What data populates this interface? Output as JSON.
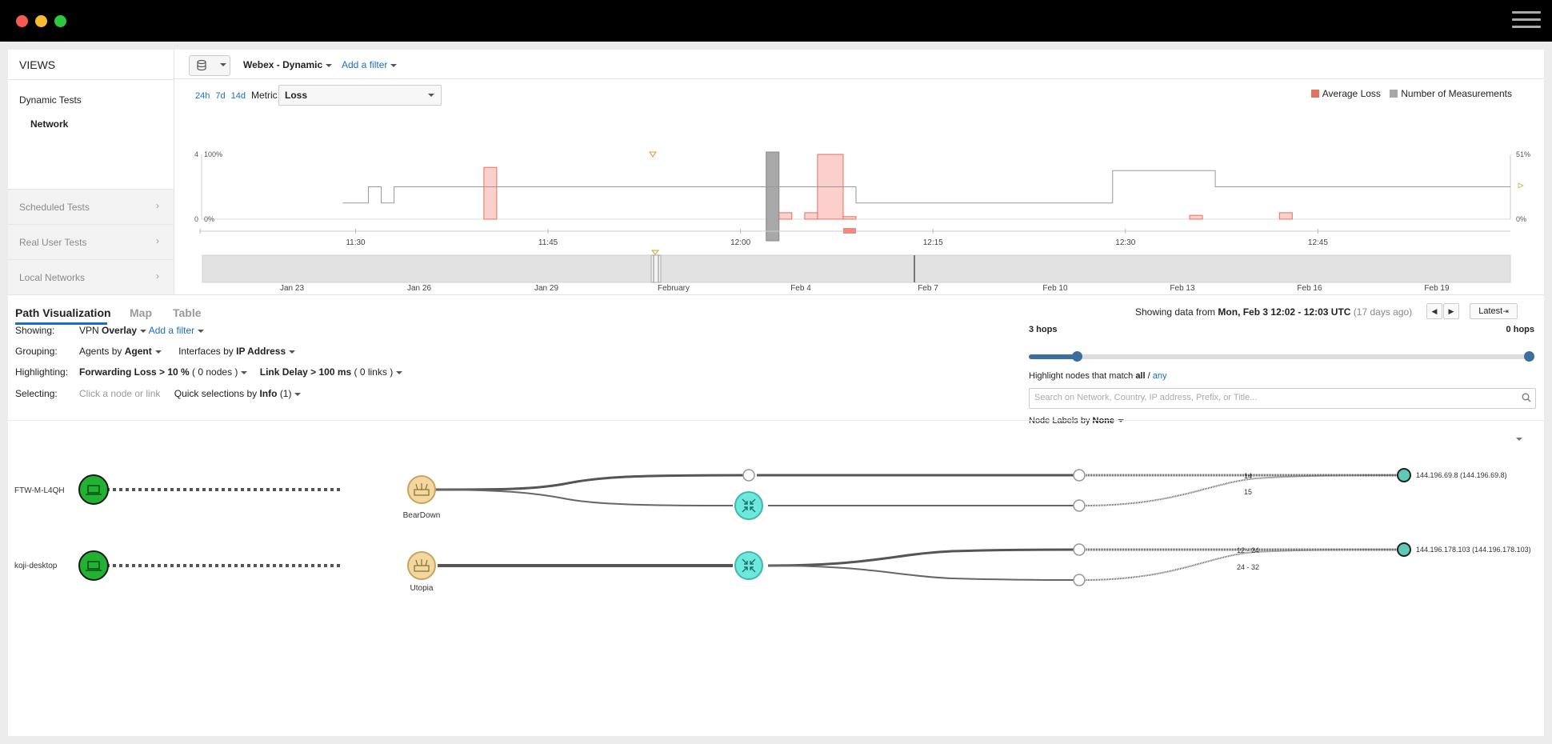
{
  "colors": {
    "average_loss": "#e4725f",
    "measurements": "#a8a8a8",
    "agent_green": "#22b233",
    "router_tan": "#f3d7a0",
    "vpn_cyan": "#6ee8dc",
    "accent_blue": "#1a6fc7",
    "slider_blue": "#3a6f9f"
  },
  "sidebar": {
    "title": "VIEWS",
    "dynamic_tests": "Dynamic Tests",
    "network": "Network",
    "sections": [
      {
        "label": "Scheduled Tests",
        "icon": "chevron-right-icon"
      },
      {
        "label": "Real User Tests",
        "icon": "chevron-right-icon"
      },
      {
        "label": "Local Networks",
        "icon": "chevron-right-icon"
      }
    ]
  },
  "filterbar": {
    "test_name": "Webex - Dynamic",
    "add_filter": "Add a filter",
    "db_icon": "database-icon"
  },
  "chart": {
    "time_ranges": [
      "24h",
      "7d",
      "14d"
    ],
    "metric_label": "Metric",
    "metric_value": "Loss",
    "legend": [
      {
        "label": "Average Loss",
        "color": "#f08070"
      },
      {
        "label": "Number of Measurements",
        "color": "#a8a8a8"
      }
    ],
    "y_left_outer": [
      "4",
      "0"
    ],
    "y_left_inner": [
      "100%",
      "0%"
    ],
    "y_right": [
      "51%",
      "0%"
    ],
    "x_ticks": [
      "11:30",
      "11:45",
      "12:00",
      "12:15",
      "12:30",
      "12:45"
    ],
    "timeline_ticks": [
      "Jan 23",
      "Jan 26",
      "Jan 29",
      "February",
      "Feb 4",
      "Feb 7",
      "Feb 10",
      "Feb 13",
      "Feb 16",
      "Feb 19"
    ]
  },
  "chart_data": {
    "type": "bar",
    "x_unit": "time (UTC)",
    "loss_bars": [
      {
        "start": "11:40",
        "end": "11:41",
        "loss_pct": 80
      },
      {
        "start": "12:03",
        "end": "12:04",
        "loss_pct": 10
      },
      {
        "start": "12:05",
        "end": "12:06",
        "loss_pct": 10
      },
      {
        "start": "12:06",
        "end": "12:08",
        "loss_pct": 100
      },
      {
        "start": "12:08",
        "end": "12:09",
        "loss_pct": 4
      },
      {
        "start": "12:35",
        "end": "12:36",
        "loss_pct": 6
      },
      {
        "start": "12:42",
        "end": "12:43",
        "loss_pct": 10
      }
    ],
    "measurements_step": [
      {
        "t": "11:29",
        "v": 1
      },
      {
        "t": "11:31",
        "v": 2
      },
      {
        "t": "11:32",
        "v": 1
      },
      {
        "t": "11:33",
        "v": 2
      },
      {
        "t": "12:09",
        "v": 1
      },
      {
        "t": "12:29",
        "v": 3
      },
      {
        "t": "12:37",
        "v": 2
      },
      {
        "t": "12:58",
        "v": 2
      }
    ],
    "selected": {
      "start": "12:02",
      "end": "12:03"
    },
    "y_left": [
      0,
      4
    ],
    "y_loss": [
      "0%",
      "100%"
    ],
    "y_right": [
      "0%",
      "51%"
    ]
  },
  "pathviz": {
    "tabs": [
      "Path Visualization",
      "Map",
      "Table"
    ],
    "showing_prefix": "Showing data from",
    "showing_range": "Mon, Feb 3 12:02 - 12:03 UTC",
    "showing_ago": "(17 days ago)",
    "latest": "Latest",
    "controls": {
      "showing_label": "Showing:",
      "showing_value_a": "VPN",
      "showing_value_b": "Overlay",
      "add_filter": "Add a filter",
      "grouping_label": "Grouping:",
      "grouping_agents_a": "Agents by",
      "grouping_agents_b": "Agent",
      "grouping_interfaces_a": "Interfaces by",
      "grouping_interfaces_b": "IP Address",
      "highlighting_label": "Highlighting:",
      "hl_fwd_a": "Forwarding Loss > 10 %",
      "hl_fwd_b": "( 0 nodes )",
      "hl_delay_a": "Link Delay > 100 ms",
      "hl_delay_b": "( 0 links )",
      "selecting_label": "Selecting:",
      "selecting_hint": "Click a node or link",
      "quick_a": "Quick selections by",
      "quick_b": "Info",
      "quick_c": "(1)"
    },
    "hops_left": "3 hops",
    "hops_right": "0 hops",
    "highlight_prefix": "Highlight nodes that match",
    "highlight_all": "all",
    "highlight_sep": " / ",
    "highlight_any": "any",
    "search_placeholder": "Search on Network, Country, IP address, Prefix, or Title...",
    "node_labels_a": "Node Labels by",
    "node_labels_b": "None",
    "agents": [
      "FTW-M-L4QH",
      "koji-desktop"
    ],
    "routers": [
      "BearDown",
      "Utopia"
    ],
    "link_labels": [
      "14",
      "15",
      "12 - 24",
      "24 - 32"
    ],
    "targets": [
      "144.196.69.8 (144.196.69.8)",
      "144.196.178.103 (144.196.178.103)"
    ]
  }
}
